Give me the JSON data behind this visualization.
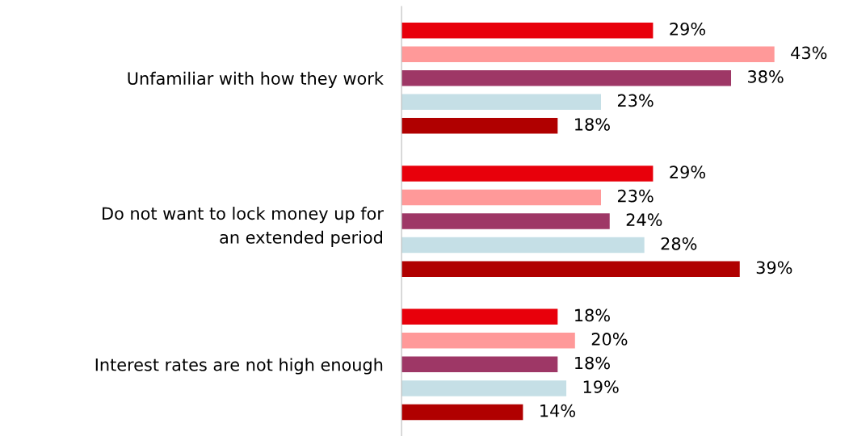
{
  "chart_data": {
    "type": "bar",
    "orientation": "horizontal",
    "tick_labels": "y",
    "categories": [
      "Unfamiliar with how they work",
      "Do not want to lock money up for\nan extended period",
      "Interest rates are not high enough"
    ],
    "series": [
      {
        "color": "#e8000b",
        "values": [
          29,
          29,
          18
        ],
        "value_labels": [
          "29%",
          "29%",
          "18%"
        ]
      },
      {
        "color": "#ff9999",
        "values": [
          43,
          23,
          20
        ],
        "value_labels": [
          "43%",
          "23%",
          "20%"
        ]
      },
      {
        "color": "#9e3766",
        "values": [
          38,
          24,
          18
        ],
        "value_labels": [
          "38%",
          "24%",
          "18%"
        ]
      },
      {
        "color": "#c5dfe6",
        "values": [
          23,
          28,
          19
        ],
        "value_labels": [
          "23%",
          "28%",
          "19%"
        ]
      },
      {
        "color": "#b00000",
        "values": [
          18,
          39,
          14
        ],
        "value_labels": [
          "18%",
          "39%",
          "14%"
        ]
      }
    ]
  }
}
